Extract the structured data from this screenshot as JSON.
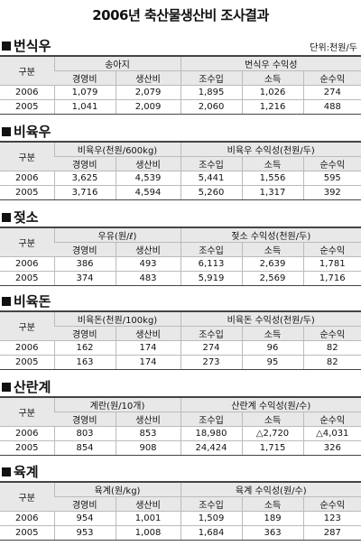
{
  "title": "2006년 축산물생산비 조사결과",
  "unit": "단위:천원/두",
  "sections": [
    {
      "title": "번식우",
      "row_header": "구분",
      "group_headers": [
        "송아지",
        "번식우 수익성"
      ],
      "columns": [
        "경영비",
        "생산비",
        "조수입",
        "소득",
        "순수익"
      ],
      "rows": [
        [
          "2006",
          "1,079",
          "2,079",
          "1,895",
          "1,026",
          "274"
        ],
        [
          "2005",
          "1,041",
          "2,009",
          "2,060",
          "1,216",
          "488"
        ]
      ]
    },
    {
      "title": "비육우",
      "row_header": "구분",
      "group_headers": [
        "비육우(천원/600kg)",
        "비육우 수익성(천원/두)"
      ],
      "columns": [
        "경영비",
        "생산비",
        "조수입",
        "소득",
        "순수익"
      ],
      "rows": [
        [
          "2006",
          "3,625",
          "4,539",
          "5,441",
          "1,556",
          "595"
        ],
        [
          "2005",
          "3,716",
          "4,594",
          "5,260",
          "1,317",
          "392"
        ]
      ]
    },
    {
      "title": "젖소",
      "row_header": "구분",
      "group_headers": [
        "우유(원/ℓ)",
        "젖소 수익성(천원/두)"
      ],
      "columns": [
        "경영비",
        "생산비",
        "조수입",
        "소득",
        "순수익"
      ],
      "rows": [
        [
          "2006",
          "386",
          "493",
          "6,113",
          "2,639",
          "1,781"
        ],
        [
          "2005",
          "374",
          "483",
          "5,919",
          "2,569",
          "1,716"
        ]
      ]
    },
    {
      "title": "비육돈",
      "row_header": "구분",
      "group_headers": [
        "비육돈(천원/100kg)",
        "비육돈 수익성(천원/두)"
      ],
      "columns": [
        "경영비",
        "생산비",
        "조수입",
        "소득",
        "순수익"
      ],
      "rows": [
        [
          "2006",
          "162",
          "174",
          "274",
          "96",
          "82"
        ],
        [
          "2005",
          "163",
          "174",
          "273",
          "95",
          "82"
        ]
      ]
    },
    {
      "title": "산란계",
      "row_header": "구분",
      "group_headers": [
        "계란(원/10개)",
        "산란계 수익성(원/수)"
      ],
      "columns": [
        "경영비",
        "생산비",
        "조수입",
        "소득",
        "순수익"
      ],
      "rows": [
        [
          "2006",
          "803",
          "853",
          "18,980",
          "△2,720",
          "△4,031"
        ],
        [
          "2005",
          "854",
          "908",
          "24,424",
          "1,715",
          "326"
        ]
      ]
    },
    {
      "title": "육계",
      "row_header": "구분",
      "group_headers": [
        "육계(원/kg)",
        "육계 수익성(원/수)"
      ],
      "columns": [
        "경영비",
        "생산비",
        "조수입",
        "소득",
        "순수익"
      ],
      "rows": [
        [
          "2006",
          "954",
          "1,001",
          "1,509",
          "189",
          "123"
        ],
        [
          "2005",
          "953",
          "1,008",
          "1,684",
          "363",
          "287"
        ]
      ]
    }
  ]
}
